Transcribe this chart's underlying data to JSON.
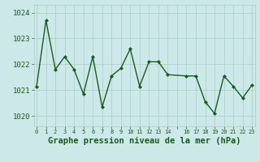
{
  "x": [
    0,
    1,
    2,
    3,
    4,
    5,
    6,
    7,
    8,
    9,
    10,
    11,
    12,
    13,
    14,
    16,
    17,
    18,
    19,
    20,
    21,
    22,
    23
  ],
  "y": [
    1021.15,
    1023.7,
    1021.8,
    1022.3,
    1021.8,
    1020.85,
    1022.3,
    1020.35,
    1021.55,
    1021.85,
    1022.6,
    1021.15,
    1022.1,
    1022.1,
    1021.6,
    1021.55,
    1021.55,
    1020.55,
    1020.1,
    1021.55,
    1021.15,
    1020.7,
    1021.2
  ],
  "line_color": "#1a5c1a",
  "marker": "D",
  "marker_size": 2.0,
  "line_width": 1.0,
  "bg_color": "#cce8e8",
  "grid_color": "#aacccc",
  "xlabel": "Graphe pression niveau de la mer (hPa)",
  "xlabel_fontsize": 7.5,
  "xlabel_color": "#1a5c1a",
  "tick_color": "#1a5c1a",
  "ytick_fontsize": 6.5,
  "xtick_fontsize": 5.0,
  "ylim": [
    1019.6,
    1024.3
  ],
  "yticks": [
    1020,
    1021,
    1022,
    1023,
    1024
  ],
  "xtick_labels": [
    "0",
    "1",
    "2",
    "3",
    "4",
    "5",
    "6",
    "7",
    "8",
    "9",
    "10",
    "11",
    "12",
    "13",
    "14",
    "",
    "16",
    "17",
    "18",
    "19",
    "20",
    "21",
    "22",
    "23"
  ],
  "xlim": [
    -0.3,
    23.3
  ]
}
